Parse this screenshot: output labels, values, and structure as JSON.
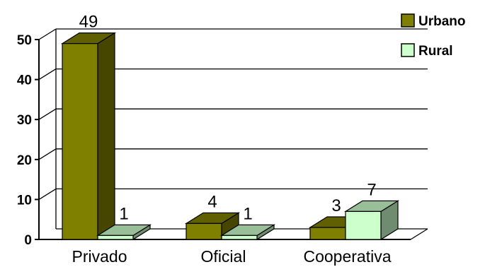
{
  "chart_data": {
    "type": "bar",
    "style": "3d-clustered-column",
    "categories": [
      "Privado",
      "Oficial",
      "Cooperativa"
    ],
    "series": [
      {
        "name": "Urbano",
        "values": [
          49,
          4,
          3
        ],
        "color": "#808000"
      },
      {
        "name": "Rural",
        "values": [
          1,
          1,
          7
        ],
        "color": "#CCFFCC"
      }
    ],
    "y_ticks": [
      "0",
      "10",
      "20",
      "30",
      "40",
      "50"
    ],
    "ylim": [
      0,
      50
    ],
    "grid": true,
    "legend": "top-right",
    "data_labels": true
  }
}
